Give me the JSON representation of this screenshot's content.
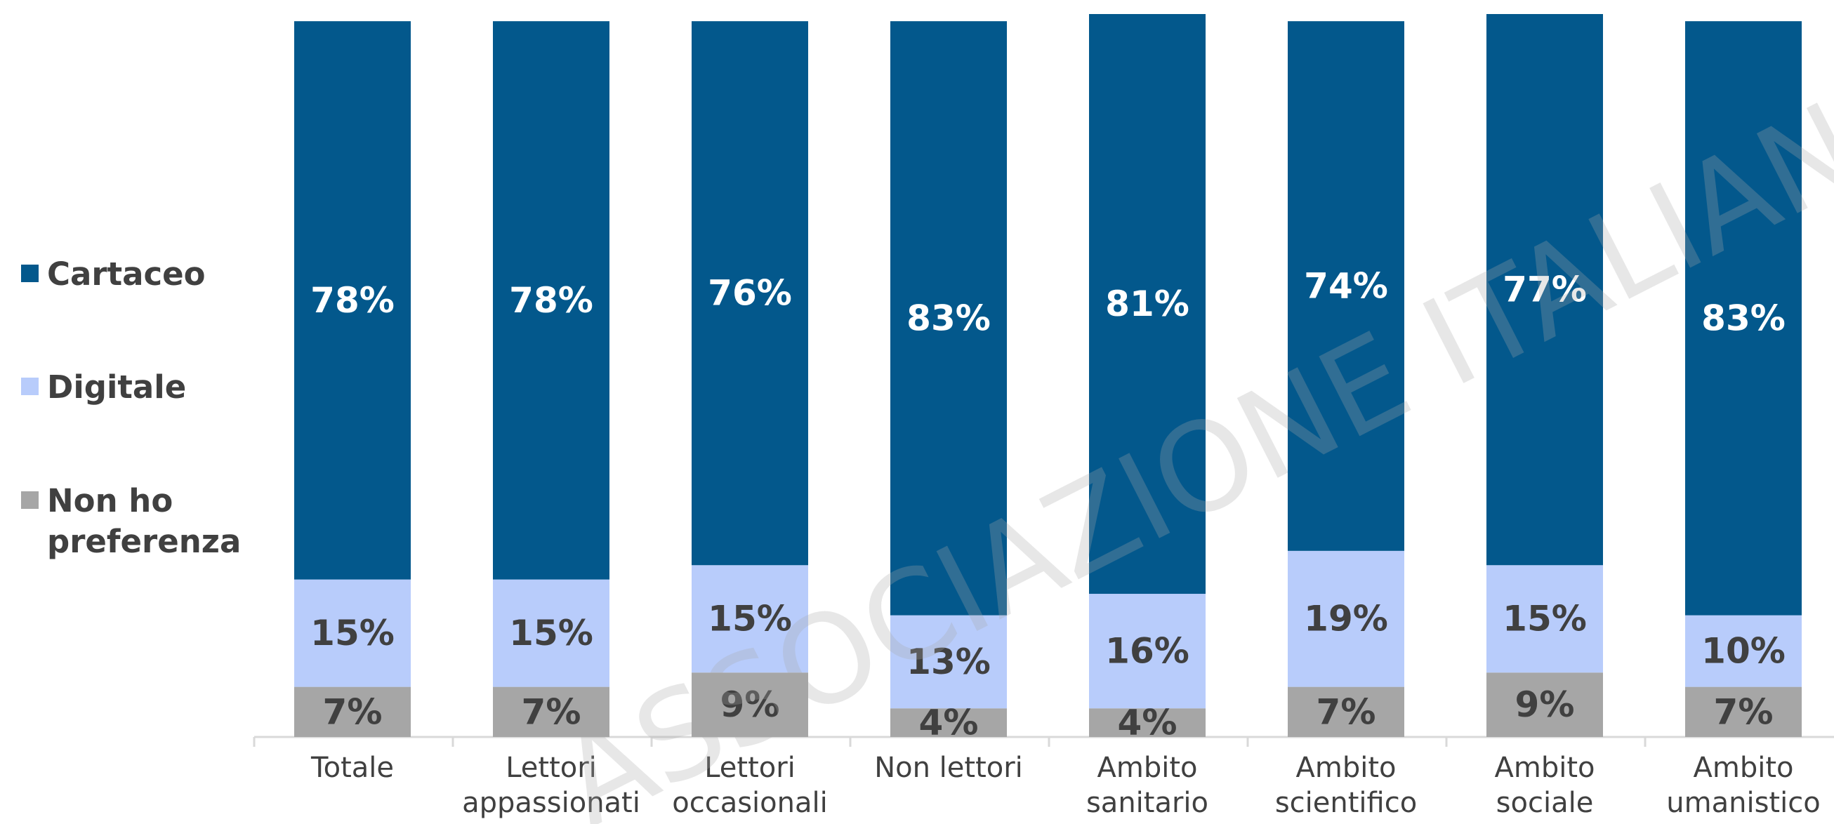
{
  "chart_data": {
    "type": "stacked_bar",
    "categories": [
      "Totale",
      "Lettori\nappassionati",
      "Lettori\noccasionali",
      "Non lettori",
      "Ambito\nsanitario",
      "Ambito\nscientifico",
      "Ambito\nsociale",
      "Ambito\numanistico"
    ],
    "series": [
      {
        "name": "Cartaceo",
        "color": "#03588c",
        "label_color": "#ffffff",
        "values": [
          78,
          78,
          76,
          83,
          81,
          74,
          77,
          83
        ],
        "value_labels": [
          "78%",
          "78%",
          "76%",
          "83%",
          "81%",
          "74%",
          "77%",
          "83%"
        ]
      },
      {
        "name": "Digitale",
        "color": "#b8ccfb",
        "label_color": "#404040",
        "values": [
          15,
          15,
          15,
          13,
          16,
          19,
          15,
          10
        ],
        "value_labels": [
          "15%",
          "15%",
          "15%",
          "13%",
          "16%",
          "19%",
          "15%",
          "10%"
        ]
      },
      {
        "name": "Non ho\npreferenza",
        "color": "#a6a6a6",
        "label_color": "#404040",
        "values": [
          7,
          7,
          9,
          4,
          4,
          7,
          9,
          7
        ],
        "value_labels": [
          "7%",
          "7%",
          "9%",
          "4%",
          "4%",
          "7%",
          "9%",
          "7%"
        ]
      }
    ],
    "ylim": [
      0,
      101
    ],
    "legend": "left",
    "watermark": "ASSOCIAZIONE ITALIANA EDITORI"
  }
}
